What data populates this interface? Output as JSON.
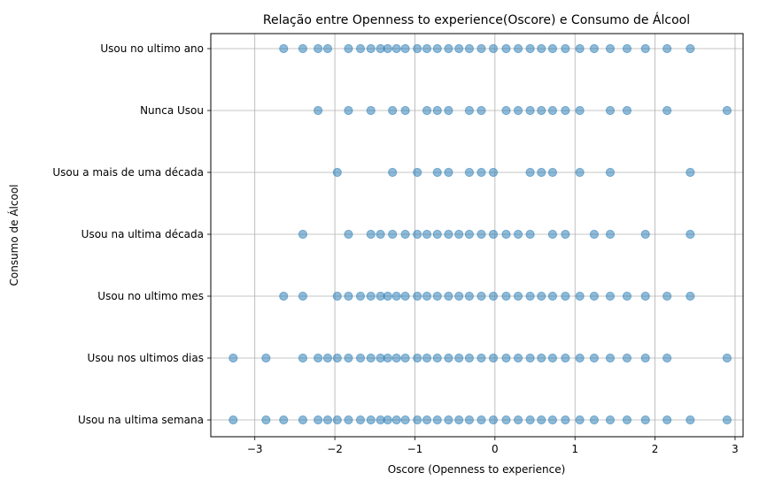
{
  "chart_data": {
    "type": "scatter",
    "title": "Relação entre Openness to experience(Oscore) e Consumo de Álcool",
    "xlabel": "Oscore (Openness to experience)",
    "ylabel": "Consumo de Álcool",
    "xlim": [
      -3.55,
      3.1
    ],
    "x_ticks": [
      -3,
      -2,
      -1,
      0,
      1,
      2,
      3
    ],
    "x_tick_labels": [
      "−3",
      "−2",
      "−1",
      "0",
      "1",
      "2",
      "3"
    ],
    "categories": [
      "Usou na ultima semana",
      "Usou nos ultimos dias",
      "Usou no ultimo mes",
      "Usou na ultima década",
      "Usou a mais de uma década",
      "Nunca Usou",
      "Usou no ultimo ano"
    ],
    "grid": true,
    "marker_color": "#1f77b4",
    "marker_alpha": 0.5,
    "points": [
      {
        "category": "Usou no ultimo ano",
        "x": [
          -2.64,
          -2.4,
          -2.21,
          -2.09,
          -1.83,
          -1.68,
          -1.55,
          -1.43,
          -1.34,
          -1.23,
          -1.12,
          -0.97,
          -0.85,
          -0.72,
          -0.58,
          -0.45,
          -0.32,
          -0.17,
          -0.02,
          0.14,
          0.29,
          0.44,
          0.58,
          0.72,
          0.88,
          1.06,
          1.24,
          1.44,
          1.65,
          1.88,
          2.15,
          2.44
        ]
      },
      {
        "category": "Nunca Usou",
        "x": [
          -2.21,
          -1.83,
          -1.55,
          -1.28,
          -1.12,
          -0.85,
          -0.72,
          -0.58,
          -0.32,
          -0.17,
          0.14,
          0.29,
          0.44,
          0.58,
          0.72,
          0.88,
          1.06,
          1.44,
          1.65,
          2.15,
          2.9
        ]
      },
      {
        "category": "Usou a mais de uma década",
        "x": [
          -1.97,
          -1.28,
          -0.97,
          -0.72,
          -0.58,
          -0.32,
          -0.17,
          -0.02,
          0.44,
          0.58,
          0.72,
          1.06,
          1.44,
          2.44
        ]
      },
      {
        "category": "Usou na ultima década",
        "x": [
          -2.4,
          -1.83,
          -1.55,
          -1.43,
          -1.28,
          -1.12,
          -0.97,
          -0.85,
          -0.72,
          -0.58,
          -0.45,
          -0.32,
          -0.17,
          -0.02,
          0.14,
          0.29,
          0.44,
          0.72,
          0.88,
          1.24,
          1.44,
          1.88,
          2.44
        ]
      },
      {
        "category": "Usou no ultimo mes",
        "x": [
          -2.64,
          -2.4,
          -1.97,
          -1.83,
          -1.68,
          -1.55,
          -1.43,
          -1.34,
          -1.23,
          -1.12,
          -0.97,
          -0.85,
          -0.72,
          -0.58,
          -0.45,
          -0.32,
          -0.17,
          -0.02,
          0.14,
          0.29,
          0.44,
          0.58,
          0.72,
          0.88,
          1.06,
          1.24,
          1.44,
          1.65,
          1.88,
          2.15,
          2.44
        ]
      },
      {
        "category": "Usou nos ultimos dias",
        "x": [
          -3.27,
          -2.86,
          -2.4,
          -2.21,
          -2.09,
          -1.97,
          -1.83,
          -1.68,
          -1.55,
          -1.43,
          -1.34,
          -1.23,
          -1.12,
          -0.97,
          -0.85,
          -0.72,
          -0.58,
          -0.45,
          -0.32,
          -0.17,
          -0.02,
          0.14,
          0.29,
          0.44,
          0.58,
          0.72,
          0.88,
          1.06,
          1.24,
          1.44,
          1.65,
          1.88,
          2.15,
          2.9
        ]
      },
      {
        "category": "Usou na ultima semana",
        "x": [
          -3.27,
          -2.86,
          -2.64,
          -2.4,
          -2.21,
          -2.09,
          -1.97,
          -1.83,
          -1.68,
          -1.55,
          -1.43,
          -1.34,
          -1.23,
          -1.12,
          -0.97,
          -0.85,
          -0.72,
          -0.58,
          -0.45,
          -0.32,
          -0.17,
          -0.02,
          0.14,
          0.29,
          0.44,
          0.58,
          0.72,
          0.88,
          1.06,
          1.24,
          1.44,
          1.65,
          1.88,
          2.15,
          2.44,
          2.9
        ]
      }
    ]
  }
}
